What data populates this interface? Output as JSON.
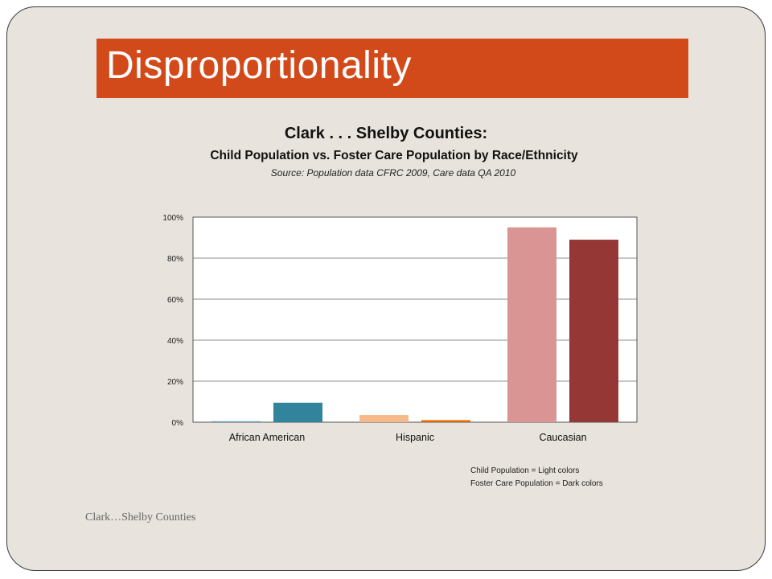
{
  "slide": {
    "title": "Disproportionality",
    "footer": "Clark…Shelby Counties",
    "accent_color": "#d24a1a",
    "background_color": "#e8e3dc"
  },
  "chart_data": {
    "type": "bar",
    "title": "Clark . . . Shelby Counties:",
    "subtitle": "Child Population vs. Foster Care Population by Race/Ethnicity",
    "source": "Source:  Population data CFRC 2009, Care data QA 2010",
    "categories": [
      "African American",
      "Hispanic",
      "Caucasian"
    ],
    "series": [
      {
        "values": [
          0.5,
          3.5,
          95
        ],
        "colors": [
          "#6aa9be",
          "#f5b98a",
          "#d99494"
        ]
      },
      {
        "values": [
          9.5,
          1,
          89
        ],
        "colors": [
          "#31849b",
          "#e36c09",
          "#953735"
        ]
      }
    ],
    "ylim": [
      0,
      100
    ],
    "yticks": [
      "0%",
      "20%",
      "40%",
      "60%",
      "80%",
      "100%"
    ],
    "grid": true,
    "legend_lines": [
      "Child Population = Light colors",
      "Foster Care Population = Dark colors"
    ]
  }
}
